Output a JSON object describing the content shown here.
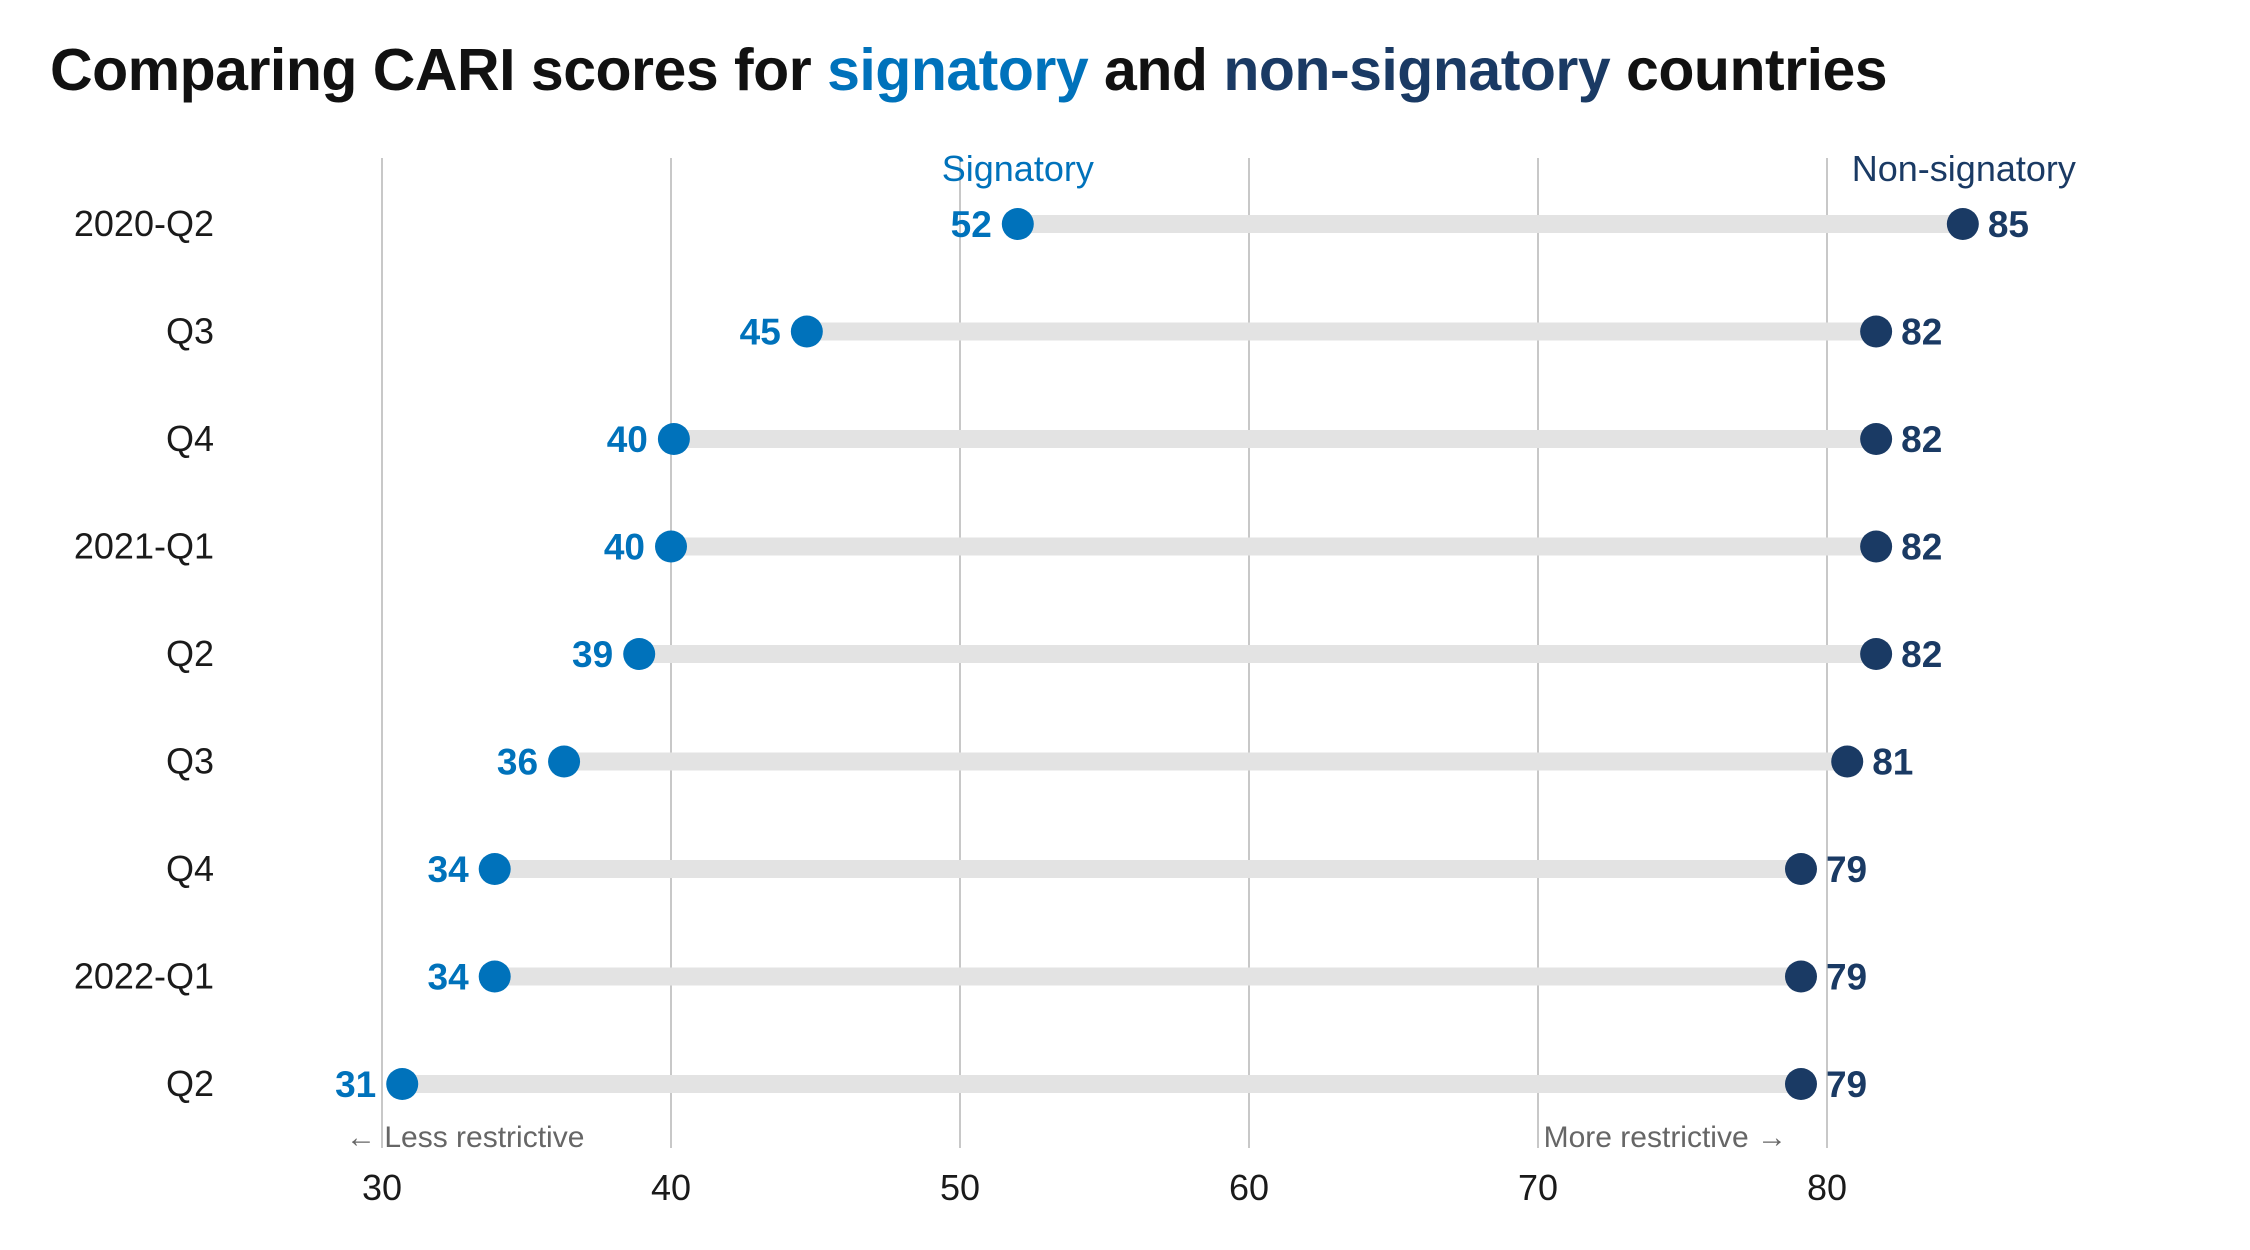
{
  "title": {
    "prefix": "Comparing CARI scores for ",
    "highlight1": "signatory",
    "middle": " and ",
    "highlight2": "non-signatory",
    "suffix": " countries"
  },
  "colors": {
    "signatory": "#0072BB",
    "non_signatory": "#1A3A64",
    "connector": "#E3E3E3",
    "grid": "#C8C8C8",
    "annotation": "#666666"
  },
  "chart_data": {
    "type": "dumbbell",
    "title": "Comparing CARI scores for signatory and non-signatory countries",
    "categories": [
      "2020-Q2",
      "Q3",
      "Q4",
      "2021-Q1",
      "Q2",
      "Q3",
      "Q4",
      "2022-Q1",
      "Q2"
    ],
    "series": [
      {
        "name": "Signatory",
        "color": "#0072BB",
        "values": [
          52,
          45,
          40,
          40,
          39,
          36,
          34,
          34,
          31
        ]
      },
      {
        "name": "Non-signatory",
        "color": "#1A3A64",
        "values": [
          85,
          82,
          82,
          82,
          82,
          81,
          79,
          79,
          79
        ]
      }
    ],
    "point_positions": {
      "Signatory": [
        52,
        44.7,
        40.1,
        40,
        38.9,
        36.3,
        33.9,
        33.9,
        30.7
      ],
      "Non-signatory": [
        84.7,
        81.7,
        81.7,
        81.7,
        81.7,
        80.7,
        79.1,
        79.1,
        79.1
      ]
    },
    "xlim": [
      30,
      80
    ],
    "xticks": [
      30,
      40,
      50,
      60,
      70,
      80
    ],
    "grid": true,
    "annotations": {
      "left": "← Less restrictive",
      "right": "More restrictive →"
    }
  }
}
